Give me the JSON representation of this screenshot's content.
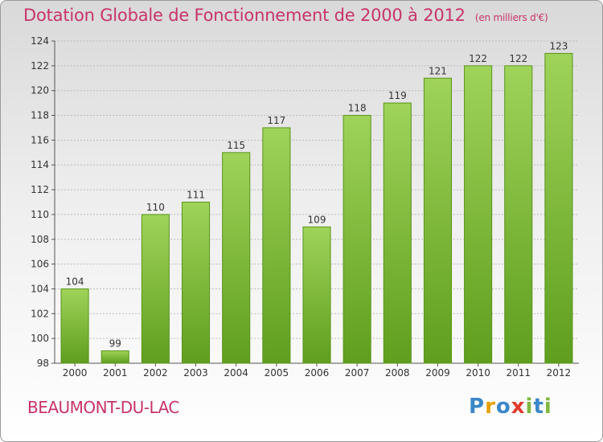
{
  "title": "Dotation Globale de Fonctionnement de 2000 à 2012",
  "unit_label": "(en milliers d'€)",
  "commune": "BEAUMONT-DU-LAC",
  "logo_letters": [
    {
      "ch": "P",
      "color": "#3a87c8"
    },
    {
      "ch": "r",
      "color": "#e8a000"
    },
    {
      "ch": "o",
      "color": "#3a87c8"
    },
    {
      "ch": "x",
      "color": "#e23a2e"
    },
    {
      "ch": "i",
      "color": "#7fb83d"
    },
    {
      "ch": "t",
      "color": "#3a87c8"
    },
    {
      "ch": "i",
      "color": "#7fb83d"
    }
  ],
  "chart_data": {
    "type": "bar",
    "categories": [
      "2000",
      "2001",
      "2002",
      "2003",
      "2004",
      "2005",
      "2006",
      "2007",
      "2008",
      "2009",
      "2010",
      "2011",
      "2012"
    ],
    "values": [
      104,
      99,
      110,
      111,
      115,
      117,
      109,
      118,
      119,
      121,
      122,
      122,
      123
    ],
    "ylim": [
      98,
      124
    ],
    "yticks": [
      98,
      100,
      102,
      104,
      106,
      108,
      110,
      112,
      114,
      116,
      118,
      120,
      122,
      124
    ],
    "grid": true,
    "bar_color": "#7fc241",
    "grid_color": "#bbbbbb"
  }
}
